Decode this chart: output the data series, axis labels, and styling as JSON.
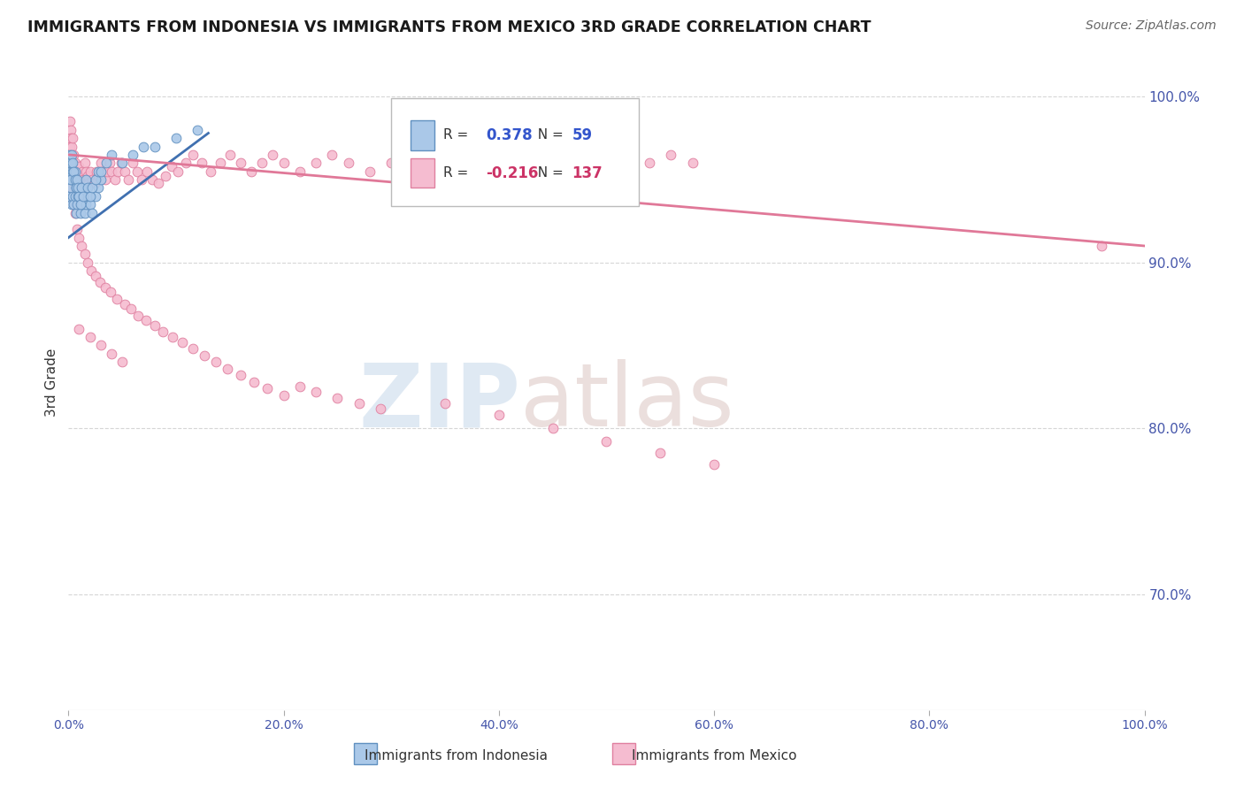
{
  "title": "IMMIGRANTS FROM INDONESIA VS IMMIGRANTS FROM MEXICO 3RD GRADE CORRELATION CHART",
  "source": "Source: ZipAtlas.com",
  "ylabel": "3rd Grade",
  "legend_blue_r": "0.378",
  "legend_blue_n": "59",
  "legend_pink_r": "-0.216",
  "legend_pink_n": "137",
  "legend_label_blue": "Immigrants from Indonesia",
  "legend_label_pink": "Immigrants from Mexico",
  "blue_color": "#aac8e8",
  "pink_color": "#f5bcd0",
  "blue_edge_color": "#6090c0",
  "pink_edge_color": "#e080a0",
  "blue_line_color": "#4070b0",
  "pink_line_color": "#e07898",
  "title_color": "#1a1a1a",
  "source_color": "#666666",
  "tick_label_color": "#4455aa",
  "ylabel_color": "#333333",
  "xlim": [
    0.0,
    1.0
  ],
  "ylim": [
    0.63,
    1.025
  ],
  "yticks": [
    0.7,
    0.8,
    0.9,
    1.0
  ],
  "ytick_labels": [
    "70.0%",
    "80.0%",
    "90.0%",
    "100.0%"
  ],
  "xticks": [
    0.0,
    0.2,
    0.4,
    0.6,
    0.8,
    1.0
  ],
  "xtick_labels": [
    "0.0%",
    "20.0%",
    "40.0%",
    "60.0%",
    "80.0%",
    "100.0%"
  ],
  "background_color": "#ffffff",
  "grid_color": "#cccccc",
  "marker_size": 60,
  "blue_trendline_x": [
    0.0,
    0.13
  ],
  "blue_trendline_y": [
    0.915,
    0.978
  ],
  "pink_trendline_x": [
    0.0,
    1.0
  ],
  "pink_trendline_y": [
    0.965,
    0.91
  ],
  "blue_scatter_x": [
    0.001,
    0.001,
    0.002,
    0.002,
    0.003,
    0.003,
    0.003,
    0.004,
    0.004,
    0.005,
    0.005,
    0.006,
    0.006,
    0.007,
    0.007,
    0.008,
    0.009,
    0.01,
    0.011,
    0.012,
    0.013,
    0.014,
    0.015,
    0.016,
    0.018,
    0.02,
    0.022,
    0.025,
    0.028,
    0.03,
    0.001,
    0.002,
    0.002,
    0.003,
    0.004,
    0.005,
    0.006,
    0.007,
    0.008,
    0.009,
    0.01,
    0.011,
    0.012,
    0.014,
    0.016,
    0.018,
    0.02,
    0.022,
    0.025,
    0.028,
    0.03,
    0.035,
    0.04,
    0.05,
    0.06,
    0.07,
    0.08,
    0.1,
    0.12
  ],
  "blue_scatter_y": [
    0.96,
    0.94,
    0.955,
    0.945,
    0.96,
    0.95,
    0.935,
    0.955,
    0.94,
    0.95,
    0.935,
    0.955,
    0.94,
    0.945,
    0.93,
    0.935,
    0.94,
    0.945,
    0.93,
    0.935,
    0.94,
    0.945,
    0.93,
    0.935,
    0.94,
    0.935,
    0.93,
    0.94,
    0.945,
    0.95,
    0.965,
    0.96,
    0.95,
    0.965,
    0.96,
    0.955,
    0.95,
    0.945,
    0.95,
    0.945,
    0.94,
    0.935,
    0.945,
    0.94,
    0.95,
    0.945,
    0.94,
    0.945,
    0.95,
    0.955,
    0.955,
    0.96,
    0.965,
    0.96,
    0.965,
    0.97,
    0.97,
    0.975,
    0.98
  ],
  "pink_scatter_x": [
    0.001,
    0.001,
    0.002,
    0.002,
    0.002,
    0.003,
    0.003,
    0.004,
    0.004,
    0.005,
    0.005,
    0.006,
    0.006,
    0.007,
    0.007,
    0.008,
    0.008,
    0.009,
    0.01,
    0.011,
    0.012,
    0.013,
    0.014,
    0.015,
    0.016,
    0.017,
    0.018,
    0.019,
    0.02,
    0.022,
    0.024,
    0.026,
    0.028,
    0.03,
    0.032,
    0.034,
    0.036,
    0.038,
    0.04,
    0.043,
    0.046,
    0.049,
    0.052,
    0.056,
    0.06,
    0.064,
    0.068,
    0.073,
    0.078,
    0.084,
    0.09,
    0.096,
    0.102,
    0.109,
    0.116,
    0.124,
    0.132,
    0.141,
    0.15,
    0.16,
    0.17,
    0.18,
    0.19,
    0.2,
    0.215,
    0.23,
    0.245,
    0.26,
    0.28,
    0.3,
    0.32,
    0.34,
    0.36,
    0.38,
    0.4,
    0.42,
    0.44,
    0.46,
    0.48,
    0.5,
    0.52,
    0.54,
    0.56,
    0.58,
    0.003,
    0.004,
    0.005,
    0.006,
    0.008,
    0.01,
    0.012,
    0.015,
    0.018,
    0.021,
    0.025,
    0.029,
    0.034,
    0.039,
    0.045,
    0.052,
    0.058,
    0.065,
    0.072,
    0.08,
    0.088,
    0.097,
    0.106,
    0.116,
    0.126,
    0.137,
    0.148,
    0.16,
    0.172,
    0.185,
    0.2,
    0.215,
    0.23,
    0.25,
    0.27,
    0.29,
    0.01,
    0.02,
    0.03,
    0.04,
    0.05,
    0.35,
    0.4,
    0.45,
    0.5,
    0.55,
    0.6,
    0.96
  ],
  "pink_scatter_y": [
    0.985,
    0.97,
    0.98,
    0.965,
    0.975,
    0.97,
    0.96,
    0.975,
    0.96,
    0.965,
    0.955,
    0.96,
    0.95,
    0.958,
    0.948,
    0.955,
    0.945,
    0.95,
    0.958,
    0.952,
    0.948,
    0.955,
    0.95,
    0.96,
    0.955,
    0.948,
    0.952,
    0.948,
    0.955,
    0.95,
    0.948,
    0.955,
    0.952,
    0.96,
    0.955,
    0.95,
    0.955,
    0.96,
    0.955,
    0.95,
    0.955,
    0.96,
    0.955,
    0.95,
    0.96,
    0.955,
    0.95,
    0.955,
    0.95,
    0.948,
    0.952,
    0.958,
    0.955,
    0.96,
    0.965,
    0.96,
    0.955,
    0.96,
    0.965,
    0.96,
    0.955,
    0.96,
    0.965,
    0.96,
    0.955,
    0.96,
    0.965,
    0.96,
    0.955,
    0.96,
    0.965,
    0.96,
    0.955,
    0.96,
    0.965,
    0.96,
    0.955,
    0.96,
    0.965,
    0.96,
    0.955,
    0.96,
    0.965,
    0.96,
    0.945,
    0.94,
    0.935,
    0.93,
    0.92,
    0.915,
    0.91,
    0.905,
    0.9,
    0.895,
    0.892,
    0.888,
    0.885,
    0.882,
    0.878,
    0.875,
    0.872,
    0.868,
    0.865,
    0.862,
    0.858,
    0.855,
    0.852,
    0.848,
    0.844,
    0.84,
    0.836,
    0.832,
    0.828,
    0.824,
    0.82,
    0.825,
    0.822,
    0.818,
    0.815,
    0.812,
    0.86,
    0.855,
    0.85,
    0.845,
    0.84,
    0.815,
    0.808,
    0.8,
    0.792,
    0.785,
    0.778,
    0.91
  ]
}
